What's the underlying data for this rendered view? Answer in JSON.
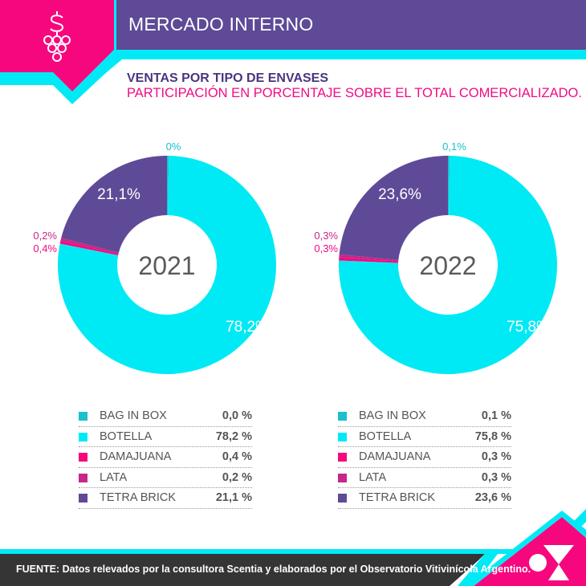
{
  "header": {
    "title": "MERCADO INTERNO",
    "icon": "grape-dollar-icon",
    "subtitle": "VENTAS POR TIPO DE ENVASES",
    "description": "PARTICIPACIÓN EN PORCENTAJE SOBRE EL TOTAL COMERCIALIZADO."
  },
  "colors": {
    "pink": "#f7077e",
    "purple": "#5e4a97",
    "cyan": "#00eaf6",
    "dark": "#363536",
    "bag_in_box": "#1cbfcc",
    "botella": "#00eaf6",
    "damajuana": "#f7077e",
    "lata": "#c7268a",
    "tetra_brick": "#5e4a97"
  },
  "chart_data": [
    {
      "type": "pie",
      "title": "2021",
      "center_label": "2021",
      "categories": [
        "BAG IN BOX",
        "BOTELLA",
        "DAMAJUANA",
        "LATA",
        "TETRA BRICK"
      ],
      "values": [
        0.0,
        78.2,
        0.4,
        0.2,
        21.1
      ],
      "slice_labels": [
        "0%",
        "78,2%",
        "0,4%",
        "0,2%",
        "21,1%"
      ],
      "legend_values": [
        "0,0 %",
        "78,2 %",
        "0,4 %",
        "0,2 %",
        "21,1 %"
      ],
      "legend": "bottom"
    },
    {
      "type": "pie",
      "title": "2022",
      "center_label": "2022",
      "categories": [
        "BAG IN BOX",
        "BOTELLA",
        "DAMAJUANA",
        "LATA",
        "TETRA BRICK"
      ],
      "values": [
        0.1,
        75.8,
        0.3,
        0.3,
        23.6
      ],
      "slice_labels": [
        "0,1%",
        "75,8%",
        "0,3%",
        "0,3%",
        "23,6%"
      ],
      "legend_values": [
        "0,1 %",
        "75,8 %",
        "0,3 %",
        "0,3 %",
        "23,6 %"
      ],
      "legend": "bottom"
    }
  ],
  "footer": {
    "source": "FUENTE: Datos relevados por la consultora Scentia y elaborados por el Observatorio Vitivinícola Argentino.",
    "logo": "observatorio-logo-icon"
  }
}
